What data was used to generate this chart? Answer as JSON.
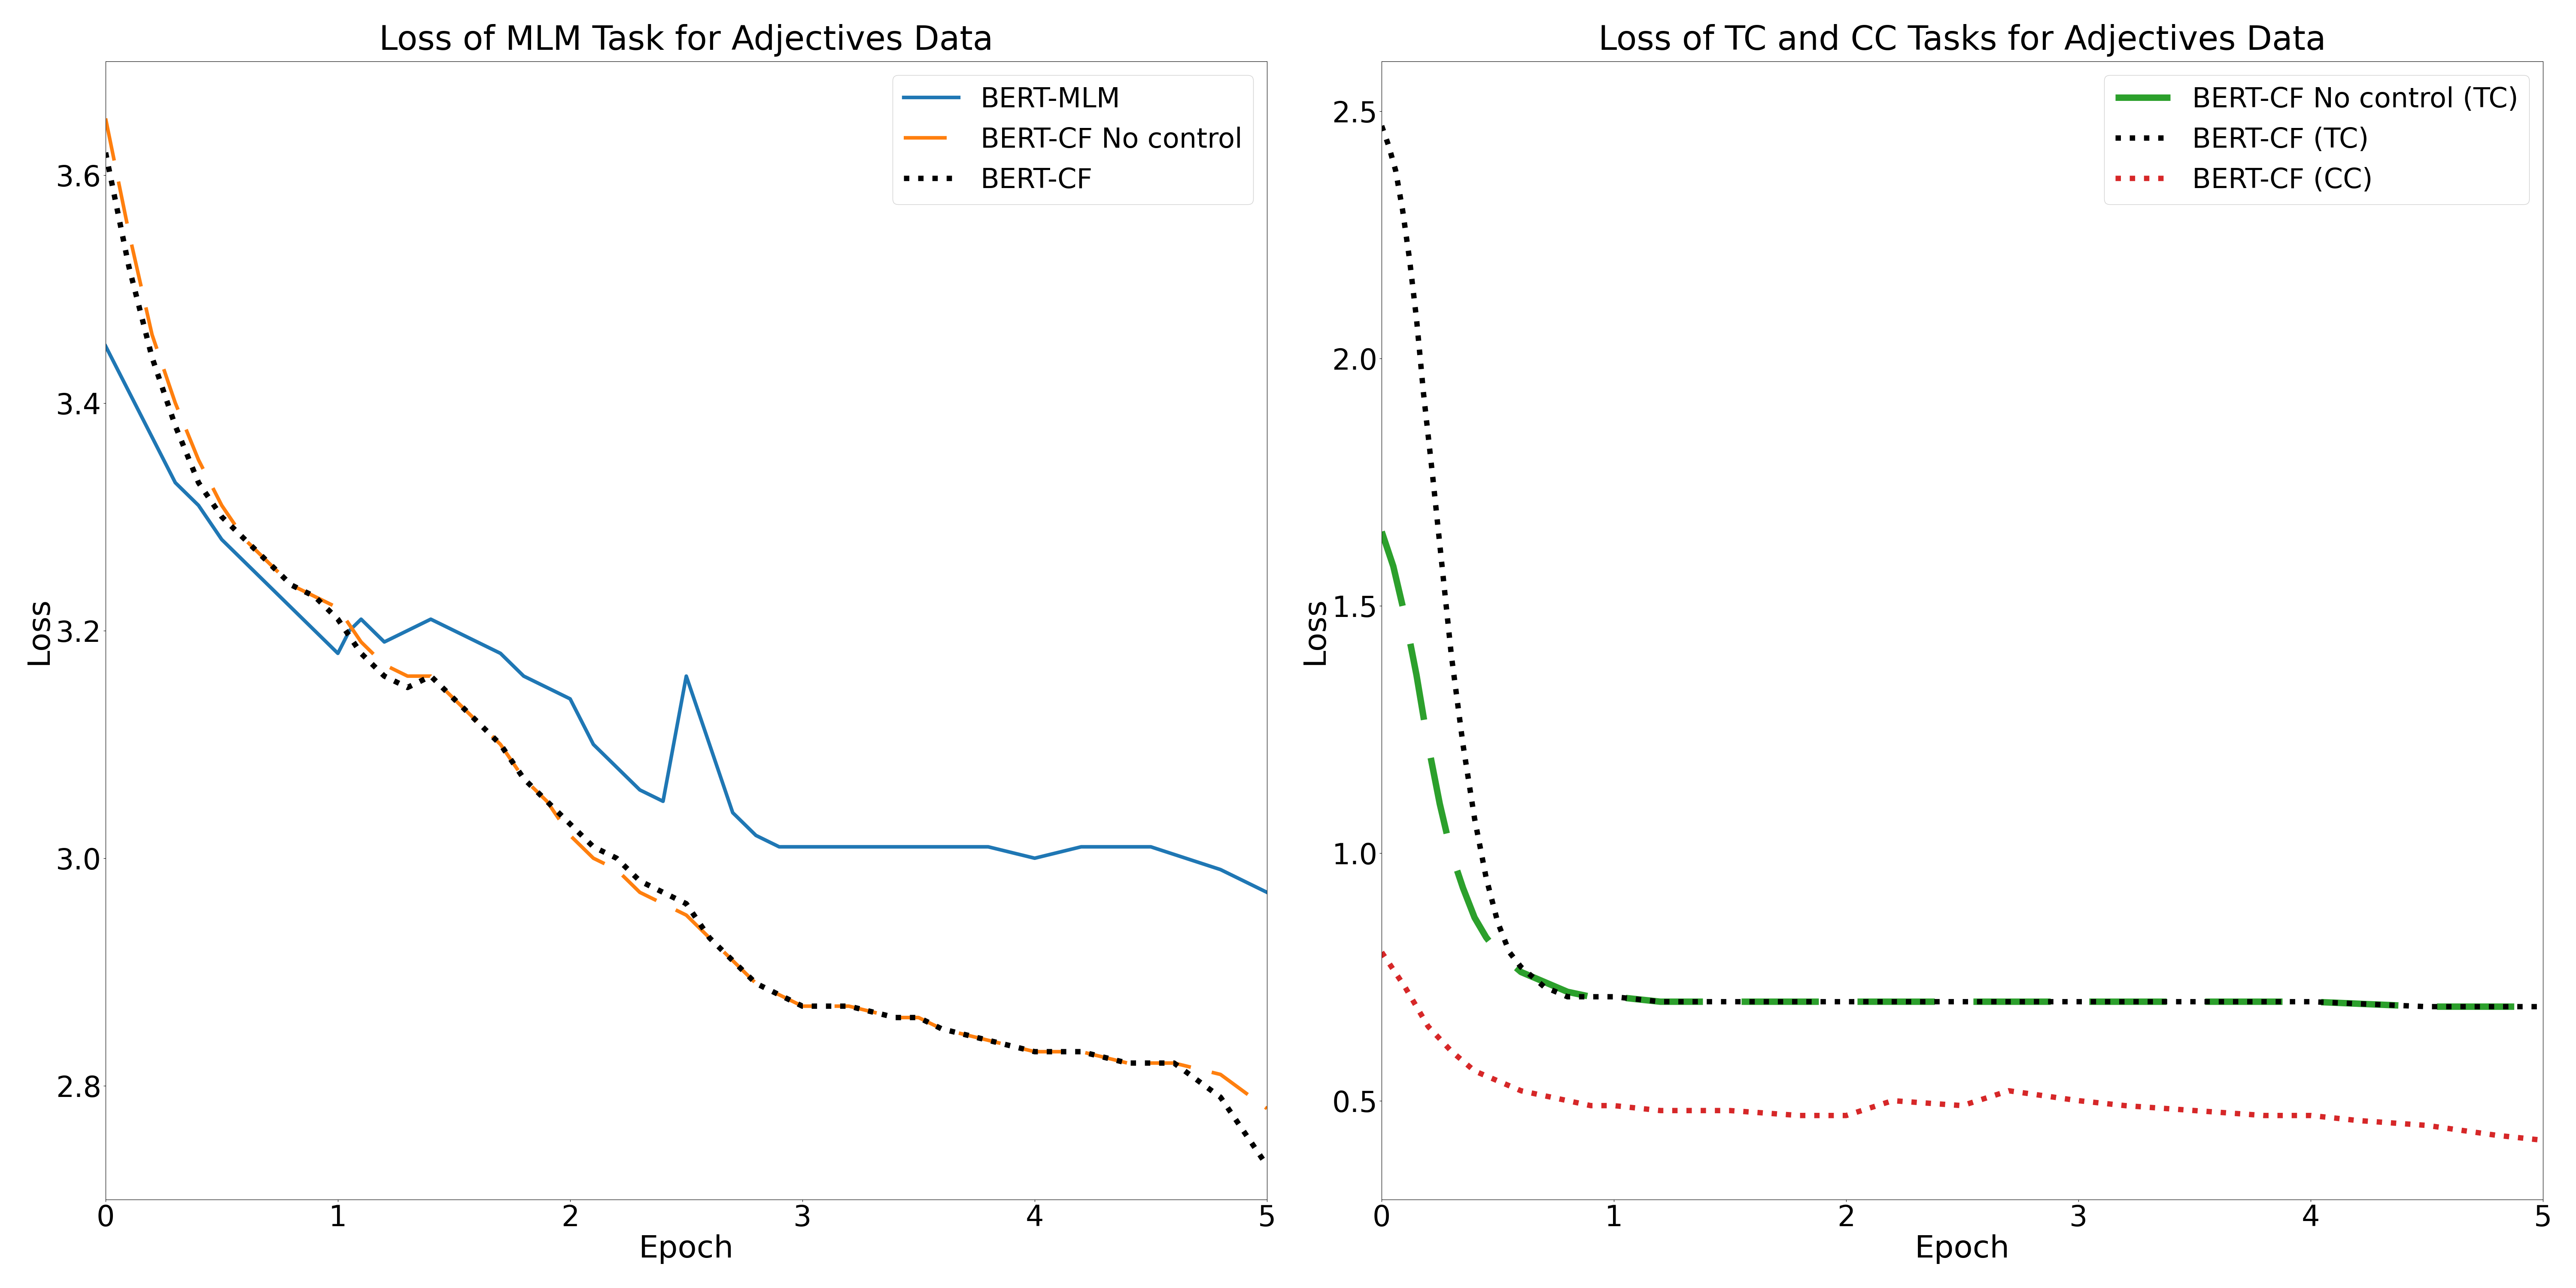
{
  "left_title": "Loss of MLM Task for Adjectives Data",
  "right_title": "Loss of TC and CC Tasks for Adjectives Data",
  "xlabel": "Epoch",
  "ylabel": "Loss",
  "bert_mlm_x": [
    0.0,
    0.1,
    0.2,
    0.3,
    0.35,
    0.4,
    0.5,
    0.6,
    0.7,
    0.75,
    0.8,
    0.9,
    1.0,
    1.05,
    1.1,
    1.2,
    1.3,
    1.4,
    1.5,
    1.6,
    1.7,
    1.8,
    1.9,
    2.0,
    2.1,
    2.2,
    2.3,
    2.4,
    2.5,
    2.6,
    2.7,
    2.8,
    2.9,
    3.0,
    3.1,
    3.2,
    3.5,
    3.8,
    4.0,
    4.2,
    4.5,
    4.8,
    5.0
  ],
  "bert_mlm_y": [
    3.45,
    3.41,
    3.37,
    3.33,
    3.32,
    3.31,
    3.28,
    3.26,
    3.24,
    3.23,
    3.22,
    3.2,
    3.18,
    3.2,
    3.21,
    3.19,
    3.2,
    3.21,
    3.2,
    3.19,
    3.18,
    3.16,
    3.15,
    3.14,
    3.1,
    3.08,
    3.06,
    3.05,
    3.16,
    3.1,
    3.04,
    3.02,
    3.01,
    3.01,
    3.01,
    3.01,
    3.01,
    3.01,
    3.0,
    3.01,
    3.01,
    2.99,
    2.97
  ],
  "bert_cf_nocontrol_x": [
    0.0,
    0.1,
    0.2,
    0.3,
    0.4,
    0.5,
    0.6,
    0.7,
    0.75,
    0.8,
    0.9,
    1.0,
    1.1,
    1.2,
    1.3,
    1.4,
    1.5,
    1.6,
    1.7,
    1.8,
    1.9,
    2.0,
    2.1,
    2.2,
    2.3,
    2.4,
    2.5,
    2.6,
    2.7,
    2.8,
    2.9,
    3.0,
    3.2,
    3.4,
    3.5,
    3.6,
    3.8,
    4.0,
    4.2,
    4.4,
    4.5,
    4.6,
    4.8,
    5.0
  ],
  "bert_cf_nocontrol_y": [
    3.65,
    3.55,
    3.46,
    3.4,
    3.35,
    3.31,
    3.28,
    3.26,
    3.25,
    3.24,
    3.23,
    3.22,
    3.19,
    3.17,
    3.16,
    3.16,
    3.14,
    3.12,
    3.1,
    3.07,
    3.05,
    3.02,
    3.0,
    2.99,
    2.97,
    2.96,
    2.95,
    2.93,
    2.91,
    2.89,
    2.88,
    2.87,
    2.87,
    2.86,
    2.86,
    2.85,
    2.84,
    2.83,
    2.83,
    2.82,
    2.82,
    2.82,
    2.81,
    2.78
  ],
  "bert_cf_x": [
    0.0,
    0.1,
    0.2,
    0.3,
    0.4,
    0.5,
    0.6,
    0.7,
    0.75,
    0.8,
    0.9,
    1.0,
    1.1,
    1.2,
    1.3,
    1.4,
    1.5,
    1.6,
    1.7,
    1.8,
    1.9,
    2.0,
    2.1,
    2.2,
    2.3,
    2.4,
    2.5,
    2.6,
    2.7,
    2.8,
    2.9,
    3.0,
    3.2,
    3.4,
    3.5,
    3.6,
    3.8,
    4.0,
    4.2,
    4.4,
    4.5,
    4.6,
    4.8,
    5.0
  ],
  "bert_cf_y": [
    3.62,
    3.52,
    3.44,
    3.38,
    3.33,
    3.3,
    3.28,
    3.26,
    3.25,
    3.24,
    3.23,
    3.21,
    3.18,
    3.16,
    3.15,
    3.16,
    3.14,
    3.12,
    3.1,
    3.07,
    3.05,
    3.03,
    3.01,
    3.0,
    2.98,
    2.97,
    2.96,
    2.93,
    2.91,
    2.89,
    2.88,
    2.87,
    2.87,
    2.86,
    2.86,
    2.85,
    2.84,
    2.83,
    2.83,
    2.82,
    2.82,
    2.82,
    2.79,
    2.73
  ],
  "tc_nocontrol_x": [
    0.0,
    0.05,
    0.1,
    0.15,
    0.2,
    0.25,
    0.3,
    0.35,
    0.4,
    0.45,
    0.5,
    0.55,
    0.6,
    0.65,
    0.7,
    0.75,
    0.8,
    0.9,
    1.0,
    1.2,
    1.5,
    2.0,
    2.5,
    3.0,
    3.5,
    4.0,
    4.5,
    5.0
  ],
  "tc_nocontrol_y": [
    1.65,
    1.58,
    1.48,
    1.36,
    1.22,
    1.1,
    1.0,
    0.93,
    0.87,
    0.83,
    0.8,
    0.78,
    0.76,
    0.75,
    0.74,
    0.73,
    0.72,
    0.71,
    0.71,
    0.7,
    0.7,
    0.7,
    0.7,
    0.7,
    0.7,
    0.7,
    0.69,
    0.69
  ],
  "tc_x": [
    0.0,
    0.03,
    0.06,
    0.09,
    0.12,
    0.15,
    0.18,
    0.22,
    0.26,
    0.3,
    0.35,
    0.4,
    0.45,
    0.5,
    0.55,
    0.6,
    0.65,
    0.7,
    0.75,
    0.8,
    0.9,
    1.0,
    1.2,
    1.5,
    2.0,
    2.5,
    3.0,
    3.5,
    4.0,
    4.5,
    5.0
  ],
  "tc_y": [
    2.47,
    2.43,
    2.38,
    2.3,
    2.2,
    2.08,
    1.93,
    1.76,
    1.58,
    1.4,
    1.22,
    1.07,
    0.95,
    0.86,
    0.8,
    0.77,
    0.75,
    0.73,
    0.72,
    0.71,
    0.71,
    0.71,
    0.7,
    0.7,
    0.7,
    0.7,
    0.7,
    0.7,
    0.7,
    0.69,
    0.69
  ],
  "cc_x": [
    0.0,
    0.1,
    0.2,
    0.3,
    0.4,
    0.5,
    0.6,
    0.7,
    0.8,
    0.9,
    1.0,
    1.2,
    1.5,
    1.8,
    2.0,
    2.2,
    2.5,
    2.7,
    3.0,
    3.2,
    3.5,
    3.8,
    4.0,
    4.2,
    4.5,
    4.8,
    5.0
  ],
  "cc_y": [
    0.8,
    0.73,
    0.65,
    0.6,
    0.56,
    0.54,
    0.52,
    0.51,
    0.5,
    0.49,
    0.49,
    0.48,
    0.48,
    0.47,
    0.47,
    0.5,
    0.49,
    0.52,
    0.5,
    0.49,
    0.48,
    0.47,
    0.47,
    0.46,
    0.45,
    0.43,
    0.42
  ],
  "left_ylim": [
    2.7,
    3.7
  ],
  "right_ylim": [
    0.3,
    2.6
  ],
  "xlim": [
    0,
    5
  ],
  "color_mlm": "#1f77b4",
  "color_nocontrol": "#ff7f0e",
  "color_cf": "#000000",
  "color_tc_nocontrol": "#2ca02c",
  "color_tc": "#000000",
  "color_cc": "#d62728",
  "title_fontsize": 56,
  "label_fontsize": 52,
  "tick_fontsize": 48,
  "legend_fontsize": 46,
  "linewidth": 6.0
}
